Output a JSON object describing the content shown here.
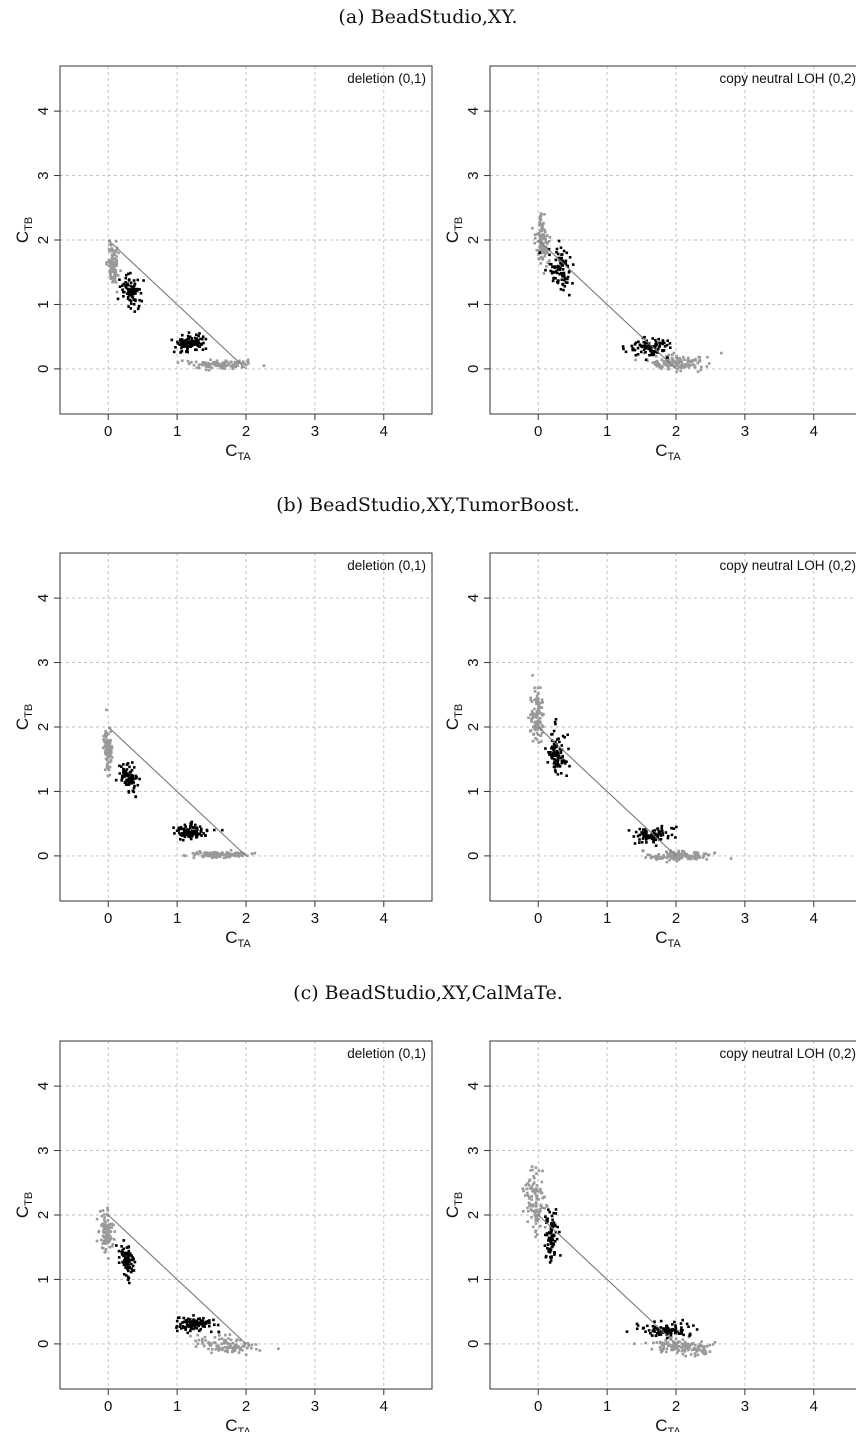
{
  "figure": {
    "captions": [
      "(a) BeadStudio,XY.",
      "(b) BeadStudio,XY,TumorBoost.",
      "(c) BeadStudio,XY,CalMaTe."
    ]
  },
  "colors": {
    "grey_points": "#999999",
    "black_points": "#000000",
    "grid": "#bdbdbd",
    "diag_line": "#777777"
  },
  "chart_data": [
    {
      "type": "scatter",
      "caption": "(a) BeadStudio,XY.",
      "annotation": "deletion (0,1)",
      "xlabel": "C",
      "xlabel_sub": "TA",
      "ylabel": "C",
      "ylabel_sub": "TB",
      "xlim": [
        -0.7,
        4.7
      ],
      "ylim": [
        -0.7,
        4.7
      ],
      "xticks": [
        "0",
        "1",
        "2",
        "3",
        "4"
      ],
      "yticks": [
        "0",
        "1",
        "2",
        "3",
        "4"
      ],
      "grid": true,
      "reference_line": [
        [
          0,
          2
        ],
        [
          2,
          0
        ]
      ],
      "series": [
        {
          "color": "grey",
          "clusters": [
            {
              "center": [
                0.07,
                1.62
              ],
              "spread": [
                0.04,
                0.17
              ],
              "slope": -0.4,
              "n": 90
            },
            {
              "center": [
                1.62,
                0.07
              ],
              "spread": [
                0.2,
                0.035
              ],
              "slope": 0,
              "n": 110
            }
          ]
        },
        {
          "color": "black",
          "clusters": [
            {
              "center": [
                0.32,
                1.2
              ],
              "spread": [
                0.07,
                0.13
              ],
              "slope": -0.5,
              "n": 80
            },
            {
              "center": [
                1.2,
                0.4
              ],
              "spread": [
                0.13,
                0.06
              ],
              "slope": 0,
              "n": 100
            }
          ]
        }
      ]
    },
    {
      "type": "scatter",
      "caption": "(a) BeadStudio,XY.",
      "annotation": "copy neutral LOH (0,2)",
      "xlabel": "C",
      "xlabel_sub": "TA",
      "ylabel": "C",
      "ylabel_sub": "TB",
      "xlim": [
        -0.7,
        4.7
      ],
      "ylim": [
        -0.7,
        4.7
      ],
      "xticks": [
        "0",
        "1",
        "2",
        "3",
        "4"
      ],
      "yticks": [
        "0",
        "1",
        "2",
        "3",
        "4"
      ],
      "grid": true,
      "reference_line": [
        [
          0,
          2
        ],
        [
          2,
          0
        ]
      ],
      "series": [
        {
          "color": "grey",
          "clusters": [
            {
              "center": [
                0.05,
                2.0
              ],
              "spread": [
                0.05,
                0.2
              ],
              "slope": -0.4,
              "n": 110
            },
            {
              "center": [
                2.0,
                0.09
              ],
              "spread": [
                0.22,
                0.06
              ],
              "slope": 0,
              "n": 130
            }
          ]
        },
        {
          "color": "black",
          "clusters": [
            {
              "center": [
                0.32,
                1.55
              ],
              "spread": [
                0.08,
                0.18
              ],
              "slope": -0.6,
              "n": 90
            },
            {
              "center": [
                1.65,
                0.35
              ],
              "spread": [
                0.15,
                0.07
              ],
              "slope": 0,
              "n": 90
            }
          ]
        }
      ]
    },
    {
      "type": "scatter",
      "caption": "(b) BeadStudio,XY,TumorBoost.",
      "annotation": "deletion (0,1)",
      "xlabel": "C",
      "xlabel_sub": "TA",
      "ylabel": "C",
      "ylabel_sub": "TB",
      "xlim": [
        -0.7,
        4.7
      ],
      "ylim": [
        -0.7,
        4.7
      ],
      "xticks": [
        "0",
        "1",
        "2",
        "3",
        "4"
      ],
      "yticks": [
        "0",
        "1",
        "2",
        "3",
        "4"
      ],
      "grid": true,
      "reference_line": [
        [
          0,
          2
        ],
        [
          2,
          0
        ]
      ],
      "series": [
        {
          "color": "grey",
          "clusters": [
            {
              "center": [
                0.0,
                1.62
              ],
              "spread": [
                0.03,
                0.16
              ],
              "slope": -0.3,
              "n": 90
            },
            {
              "center": [
                1.62,
                0.02
              ],
              "spread": [
                0.2,
                0.025
              ],
              "slope": 0,
              "n": 110
            }
          ]
        },
        {
          "color": "black",
          "clusters": [
            {
              "center": [
                0.3,
                1.22
              ],
              "spread": [
                0.06,
                0.12
              ],
              "slope": -0.4,
              "n": 80
            },
            {
              "center": [
                1.2,
                0.37
              ],
              "spread": [
                0.13,
                0.06
              ],
              "slope": 0,
              "n": 100
            }
          ]
        }
      ]
    },
    {
      "type": "scatter",
      "caption": "(b) BeadStudio,XY,TumorBoost.",
      "annotation": "copy neutral LOH (0,2)",
      "xlabel": "C",
      "xlabel_sub": "TA",
      "ylabel": "C",
      "ylabel_sub": "TB",
      "xlim": [
        -0.7,
        4.7
      ],
      "ylim": [
        -0.7,
        4.7
      ],
      "xticks": [
        "0",
        "1",
        "2",
        "3",
        "4"
      ],
      "yticks": [
        "0",
        "1",
        "2",
        "3",
        "4"
      ],
      "grid": true,
      "reference_line": [
        [
          0,
          2
        ],
        [
          2,
          0
        ]
      ],
      "series": [
        {
          "color": "grey",
          "clusters": [
            {
              "center": [
                -0.02,
                2.2
              ],
              "spread": [
                0.05,
                0.22
              ],
              "slope": -0.4,
              "n": 110
            },
            {
              "center": [
                2.05,
                0.0
              ],
              "spread": [
                0.22,
                0.035
              ],
              "slope": 0,
              "n": 130
            }
          ]
        },
        {
          "color": "black",
          "clusters": [
            {
              "center": [
                0.28,
                1.58
              ],
              "spread": [
                0.07,
                0.17
              ],
              "slope": -0.5,
              "n": 90
            },
            {
              "center": [
                1.65,
                0.32
              ],
              "spread": [
                0.14,
                0.06
              ],
              "slope": 0,
              "n": 90
            }
          ]
        }
      ]
    },
    {
      "type": "scatter",
      "caption": "(c) BeadStudio,XY,CalMaTe.",
      "annotation": "deletion (0,1)",
      "xlabel": "C",
      "xlabel_sub": "TA",
      "ylabel": "C",
      "ylabel_sub": "TB",
      "xlim": [
        -0.7,
        4.7
      ],
      "ylim": [
        -0.7,
        4.7
      ],
      "xticks": [
        "0",
        "1",
        "2",
        "3",
        "4"
      ],
      "yticks": [
        "0",
        "1",
        "2",
        "3",
        "4"
      ],
      "grid": true,
      "reference_line": [
        [
          0,
          2
        ],
        [
          2,
          0
        ]
      ],
      "series": [
        {
          "color": "grey",
          "clusters": [
            {
              "center": [
                -0.03,
                1.72
              ],
              "spread": [
                0.05,
                0.15
              ],
              "slope": -0.4,
              "n": 90
            },
            {
              "center": [
                1.7,
                -0.02
              ],
              "spread": [
                0.2,
                0.06
              ],
              "slope": -0.1,
              "n": 110
            }
          ]
        },
        {
          "color": "black",
          "clusters": [
            {
              "center": [
                0.27,
                1.3
              ],
              "spread": [
                0.05,
                0.12
              ],
              "slope": -0.4,
              "n": 80
            },
            {
              "center": [
                1.25,
                0.3
              ],
              "spread": [
                0.14,
                0.06
              ],
              "slope": 0,
              "n": 100
            }
          ]
        }
      ]
    },
    {
      "type": "scatter",
      "caption": "(c) BeadStudio,XY,CalMaTe.",
      "annotation": "copy neutral LOH (0,2)",
      "xlabel": "C",
      "xlabel_sub": "TA",
      "ylabel": "C",
      "ylabel_sub": "TB",
      "xlim": [
        -0.7,
        4.7
      ],
      "ylim": [
        -0.7,
        4.7
      ],
      "xticks": [
        "0",
        "1",
        "2",
        "3",
        "4"
      ],
      "yticks": [
        "0",
        "1",
        "2",
        "3",
        "4"
      ],
      "grid": true,
      "reference_line": [
        [
          0,
          2
        ],
        [
          2,
          0
        ]
      ],
      "series": [
        {
          "color": "grey",
          "clusters": [
            {
              "center": [
                -0.05,
                2.2
              ],
              "spread": [
                0.07,
                0.22
              ],
              "slope": -0.4,
              "n": 110
            },
            {
              "center": [
                2.1,
                -0.05
              ],
              "spread": [
                0.25,
                0.06
              ],
              "slope": -0.1,
              "n": 130
            }
          ]
        },
        {
          "color": "black",
          "clusters": [
            {
              "center": [
                0.2,
                1.65
              ],
              "spread": [
                0.05,
                0.2
              ],
              "slope": -0.3,
              "n": 90
            },
            {
              "center": [
                1.85,
                0.22
              ],
              "spread": [
                0.17,
                0.06
              ],
              "slope": 0,
              "n": 90
            }
          ]
        }
      ]
    }
  ]
}
